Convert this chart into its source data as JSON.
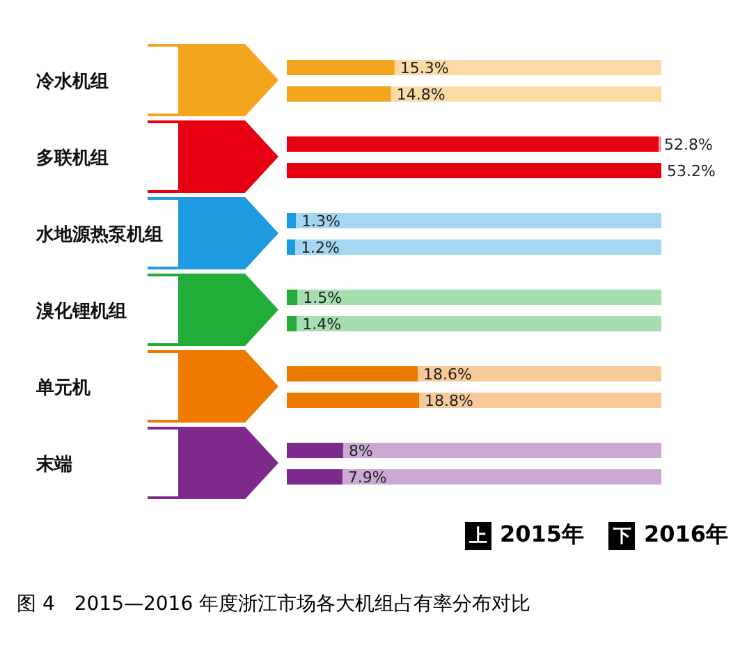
{
  "chart_data": {
    "type": "bar",
    "orientation": "horizontal",
    "title": "图 4　2015—2016 年度浙江市场各大机组占有率分布对比",
    "categories": [
      "冷水机组",
      "多联机组",
      "水地源热泵机组",
      "溴化锂机组",
      "单元机",
      "末端"
    ],
    "series": [
      {
        "name": "2015年",
        "colors": [
          "#f5a41e",
          "#e60012",
          "#1e9be0",
          "#22ac38",
          "#ee7a00",
          "#7d2a8c"
        ],
        "values": [
          15.3,
          52.8,
          1.3,
          1.5,
          18.6,
          8
        ],
        "value_labels": [
          "15.3%",
          "52.8%",
          "1.3%",
          "1.5%",
          "18.6%",
          "8%"
        ]
      },
      {
        "name": "2016年",
        "colors": [
          "#f5a41e",
          "#e60012",
          "#1e9be0",
          "#22ac38",
          "#ee7a00",
          "#7d2a8c"
        ],
        "values": [
          14.8,
          53.2,
          1.2,
          1.4,
          18.8,
          7.9
        ],
        "value_labels": [
          "14.8%",
          "53.2%",
          "1.2%",
          "1.4%",
          "18.8%",
          "7.9%"
        ]
      }
    ],
    "annotations": [
      "上",
      "下"
    ],
    "tick_labels": "y",
    "legend": "bottom right"
  }
}
